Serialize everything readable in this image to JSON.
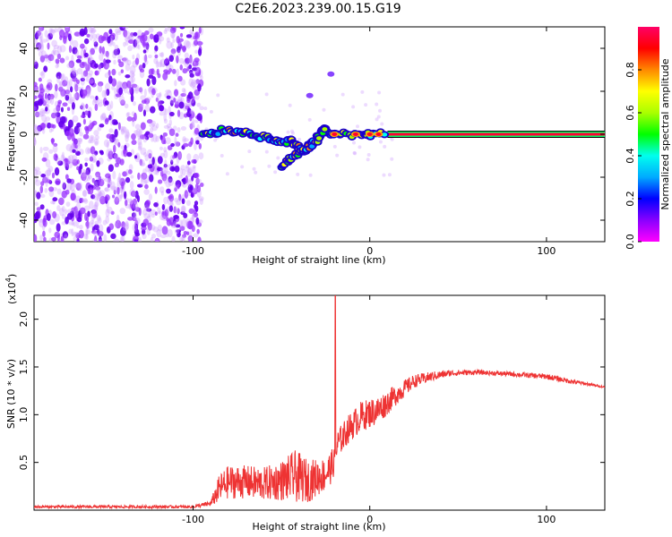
{
  "title": "C2E6.2023.239.00.15.G19",
  "chart_data": [
    {
      "type": "heatmap",
      "xlabel": "Height of straight line (km)",
      "ylabel": "Frequency (Hz)",
      "xlim": [
        -190,
        133
      ],
      "ylim": [
        -50,
        50
      ],
      "x_ticks": [
        -100,
        0,
        100
      ],
      "x_tick_labels": [
        "-100",
        "0",
        "100"
      ],
      "y_ticks": [
        40,
        20,
        0,
        -20,
        -40
      ],
      "y_tick_labels": [
        "40",
        "20",
        "0",
        "-20",
        "-40"
      ],
      "colorbar": {
        "label": "Normalized spectral amplitude",
        "range": [
          0,
          1
        ],
        "ticks": [
          0.0,
          0.2,
          0.4,
          0.6,
          0.8
        ],
        "tick_labels": [
          "0.0",
          "0.2",
          "0.4",
          "0.6",
          "0.8"
        ],
        "colormap": [
          "#ff00ff",
          "#8800ff",
          "#0000ff",
          "#00aaff",
          "#00ffee",
          "#00ff00",
          "#aaff00",
          "#ffff00",
          "#ff8800",
          "#ff0000",
          "#ff0066"
        ]
      },
      "features": {
        "noise_region_x": [
          -190,
          -95
        ],
        "trace_points": [
          [
            -95,
            0
          ],
          [
            -88,
            1
          ],
          [
            -80,
            2
          ],
          [
            -72,
            1
          ],
          [
            -65,
            0
          ],
          [
            -58,
            -2
          ],
          [
            -52,
            -4
          ],
          [
            -45,
            -3
          ],
          [
            -42,
            -5
          ],
          [
            -38,
            -8
          ],
          [
            -34,
            -5
          ],
          [
            -30,
            -2
          ],
          [
            -26,
            2
          ],
          [
            -22,
            0
          ],
          [
            -15,
            0
          ],
          [
            -5,
            0
          ],
          [
            0,
            0
          ],
          [
            10,
            0
          ]
        ],
        "lower_branch": [
          [
            -50,
            -15
          ],
          [
            -45,
            -12
          ],
          [
            -40,
            -9
          ],
          [
            -35,
            -6
          ],
          [
            -30,
            -3
          ],
          [
            -25,
            3
          ]
        ],
        "isolated_points": [
          [
            -34,
            18
          ],
          [
            -22,
            28
          ]
        ],
        "constant_line_x": [
          10,
          133
        ],
        "constant_line_freq": 0
      },
      "grid": false
    },
    {
      "type": "line",
      "xlabel": "Height of straight line (km)",
      "ylabel": "SNR (10 * v/v)",
      "y_multiplier": "(x10",
      "y_multiplier_exp": "4",
      "xlim": [
        -190,
        133
      ],
      "ylim": [
        0,
        2.25
      ],
      "x_ticks": [
        -100,
        0,
        100
      ],
      "x_tick_labels": [
        "-100",
        "0",
        "100"
      ],
      "y_ticks": [
        0.5,
        1.0,
        1.5,
        2.0
      ],
      "y_tick_labels": [
        "0.5",
        "1.0",
        "1.5",
        "2.0"
      ],
      "series": [
        {
          "color": "#ee3333",
          "envelope": {
            "x": [
              -190,
              -160,
              -130,
              -100,
              -90,
              -85,
              -80,
              -70,
              -60,
              -50,
              -42,
              -35,
              -25,
              -21,
              -20,
              -18,
              -12,
              -5,
              5,
              15,
              25,
              35,
              45,
              60,
              80,
              100,
              115,
              125,
              133
            ],
            "base": [
              0.02,
              0.02,
              0.02,
              0.02,
              0.04,
              0.08,
              0.12,
              0.12,
              0.1,
              0.1,
              0.08,
              0.08,
              0.2,
              0.3,
              0.4,
              0.55,
              0.7,
              0.82,
              0.9,
              1.1,
              1.28,
              1.35,
              1.4,
              1.42,
              1.4,
              1.37,
              1.32,
              1.3,
              1.28
            ],
            "amp": [
              0.03,
              0.03,
              0.03,
              0.03,
              0.06,
              0.3,
              0.35,
              0.35,
              0.35,
              0.42,
              0.55,
              0.45,
              0.35,
              0.35,
              0.25,
              0.3,
              0.3,
              0.32,
              0.3,
              0.22,
              0.14,
              0.1,
              0.07,
              0.05,
              0.05,
              0.06,
              0.05,
              0.03,
              0.02
            ]
          },
          "spike": {
            "x": -19.5,
            "y": 2.25
          }
        }
      ],
      "grid": false
    }
  ]
}
